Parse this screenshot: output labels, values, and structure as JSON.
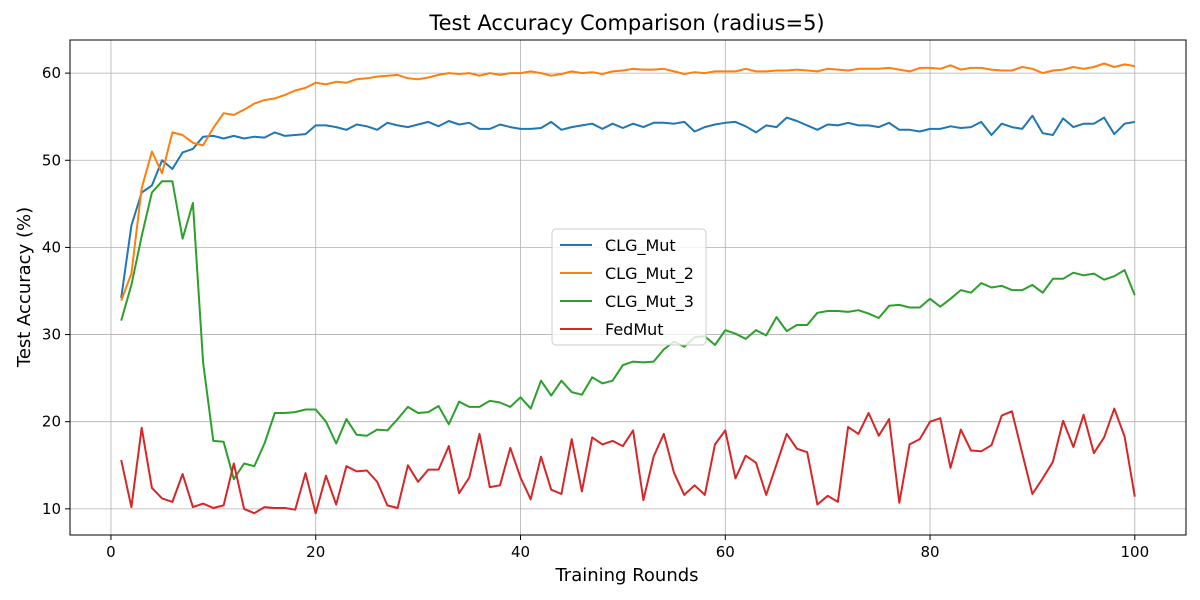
{
  "chart_data": {
    "type": "line",
    "title": "Test Accuracy Comparison (radius=5)",
    "xlabel": "Training Rounds",
    "ylabel": "Test Accuracy (%)",
    "xlim": [
      -4,
      105
    ],
    "ylim": [
      7,
      63.8
    ],
    "xticks": [
      0,
      20,
      40,
      60,
      80,
      100
    ],
    "yticks": [
      10,
      20,
      30,
      40,
      50,
      60
    ],
    "grid": true,
    "legend_position": "center-right",
    "x": [
      1,
      2,
      3,
      4,
      5,
      6,
      7,
      8,
      9,
      10,
      11,
      12,
      13,
      14,
      15,
      16,
      17,
      18,
      19,
      20,
      21,
      22,
      23,
      24,
      25,
      26,
      27,
      28,
      29,
      30,
      31,
      32,
      33,
      34,
      35,
      36,
      37,
      38,
      39,
      40,
      41,
      42,
      43,
      44,
      45,
      46,
      47,
      48,
      49,
      50,
      51,
      52,
      53,
      54,
      55,
      56,
      57,
      58,
      59,
      60,
      61,
      62,
      63,
      64,
      65,
      66,
      67,
      68,
      69,
      70,
      71,
      72,
      73,
      74,
      75,
      76,
      77,
      78,
      79,
      80,
      81,
      82,
      83,
      84,
      85,
      86,
      87,
      88,
      89,
      90,
      91,
      92,
      93,
      94,
      95,
      96,
      97,
      98,
      99,
      100
    ],
    "series": [
      {
        "name": "CLG_Mut",
        "color": "#1f77b4",
        "values": [
          34.2,
          42.5,
          46.3,
          47.1,
          50.0,
          49.0,
          50.9,
          51.3,
          52.7,
          52.8,
          52.5,
          52.8,
          52.5,
          52.7,
          52.6,
          53.2,
          52.8,
          52.9,
          53.0,
          54.0,
          54.0,
          53.8,
          53.5,
          54.1,
          53.9,
          53.5,
          54.3,
          54.0,
          53.8,
          54.1,
          54.4,
          53.9,
          54.5,
          54.1,
          54.3,
          53.6,
          53.6,
          54.1,
          53.8,
          53.6,
          53.6,
          53.7,
          54.4,
          53.5,
          53.8,
          54.0,
          54.2,
          53.6,
          54.2,
          53.7,
          54.2,
          53.8,
          54.3,
          54.3,
          54.2,
          54.4,
          53.3,
          53.8,
          54.1,
          54.3,
          54.4,
          53.9,
          53.2,
          54.0,
          53.8,
          54.9,
          54.5,
          54.0,
          53.5,
          54.1,
          54.0,
          54.3,
          54.0,
          54.0,
          53.8,
          54.3,
          53.5,
          53.5,
          53.3,
          53.6,
          53.6,
          53.9,
          53.7,
          53.8,
          54.4,
          52.9,
          54.2,
          53.8,
          53.6,
          55.1,
          53.1,
          52.9,
          54.8,
          53.8,
          54.2,
          54.2,
          54.9,
          53.0,
          54.2,
          54.4
        ]
      },
      {
        "name": "CLG_Mut_2",
        "color": "#ff7f0e",
        "values": [
          33.9,
          37.0,
          46.8,
          51.0,
          48.5,
          53.2,
          52.9,
          52.0,
          51.7,
          53.7,
          55.4,
          55.2,
          55.8,
          56.5,
          56.9,
          57.1,
          57.5,
          58.0,
          58.3,
          58.9,
          58.7,
          59.0,
          58.9,
          59.3,
          59.4,
          59.6,
          59.7,
          59.8,
          59.4,
          59.3,
          59.5,
          59.8,
          60.0,
          59.9,
          60.0,
          59.7,
          60.0,
          59.8,
          60.0,
          60.0,
          60.2,
          60.0,
          59.7,
          59.9,
          60.2,
          60.0,
          60.1,
          59.9,
          60.2,
          60.3,
          60.5,
          60.4,
          60.4,
          60.5,
          60.2,
          59.9,
          60.1,
          60.0,
          60.2,
          60.2,
          60.2,
          60.5,
          60.2,
          60.2,
          60.3,
          60.3,
          60.4,
          60.3,
          60.2,
          60.5,
          60.4,
          60.3,
          60.5,
          60.5,
          60.5,
          60.6,
          60.4,
          60.2,
          60.6,
          60.6,
          60.5,
          60.9,
          60.4,
          60.6,
          60.6,
          60.4,
          60.3,
          60.3,
          60.7,
          60.5,
          60.0,
          60.3,
          60.4,
          60.7,
          60.5,
          60.7,
          61.1,
          60.7,
          61.0,
          60.8
        ]
      },
      {
        "name": "CLG_Mut_3",
        "color": "#2ca02c",
        "values": [
          31.6,
          35.7,
          41.3,
          46.3,
          47.6,
          47.6,
          41.0,
          45.1,
          26.8,
          17.8,
          17.7,
          13.4,
          15.2,
          14.9,
          17.5,
          21.0,
          21.0,
          21.1,
          21.4,
          21.4,
          20.0,
          17.5,
          20.3,
          18.5,
          18.4,
          19.1,
          19.0,
          20.3,
          21.7,
          21.0,
          21.1,
          21.8,
          19.7,
          22.3,
          21.7,
          21.7,
          22.4,
          22.2,
          21.7,
          22.8,
          21.5,
          24.7,
          23.0,
          24.7,
          23.4,
          23.1,
          25.1,
          24.4,
          24.7,
          26.5,
          26.9,
          26.8,
          26.9,
          28.3,
          29.2,
          28.6,
          29.7,
          29.8,
          28.8,
          30.5,
          30.1,
          29.5,
          30.5,
          29.9,
          32.0,
          30.4,
          31.1,
          31.1,
          32.5,
          32.7,
          32.7,
          32.6,
          32.8,
          32.4,
          31.9,
          33.3,
          33.4,
          33.1,
          33.1,
          34.1,
          33.2,
          34.1,
          35.1,
          34.8,
          35.9,
          35.4,
          35.6,
          35.1,
          35.1,
          35.7,
          34.8,
          36.4,
          36.4,
          37.1,
          36.8,
          37.0,
          36.3,
          36.7,
          37.4,
          34.5
        ]
      },
      {
        "name": "FedMut",
        "color": "#d62728",
        "values": [
          15.6,
          10.2,
          19.3,
          12.4,
          11.2,
          10.8,
          14.0,
          10.2,
          10.6,
          10.1,
          10.4,
          15.2,
          10.0,
          9.5,
          10.2,
          10.1,
          10.1,
          9.9,
          14.1,
          9.5,
          13.8,
          10.5,
          14.9,
          14.3,
          14.4,
          13.1,
          10.4,
          10.1,
          15.0,
          13.1,
          14.5,
          14.5,
          17.2,
          11.8,
          13.6,
          18.6,
          12.5,
          12.7,
          17.0,
          13.6,
          11.1,
          16.0,
          12.2,
          11.7,
          18.0,
          12.0,
          18.2,
          17.4,
          17.8,
          17.2,
          19.0,
          11.0,
          16.0,
          18.6,
          14.1,
          11.6,
          12.7,
          11.6,
          17.4,
          19.0,
          13.5,
          16.1,
          15.3,
          11.6,
          15.1,
          18.6,
          16.9,
          16.5,
          10.5,
          11.5,
          10.8,
          19.4,
          18.6,
          21.0,
          18.4,
          20.3,
          10.7,
          17.4,
          18.0,
          20.0,
          20.4,
          14.7,
          19.1,
          16.7,
          16.6,
          17.3,
          20.7,
          21.2,
          16.4,
          11.7,
          13.5,
          15.4,
          20.1,
          17.1,
          20.8,
          16.4,
          18.2,
          21.5,
          18.3,
          11.4
        ]
      }
    ]
  }
}
